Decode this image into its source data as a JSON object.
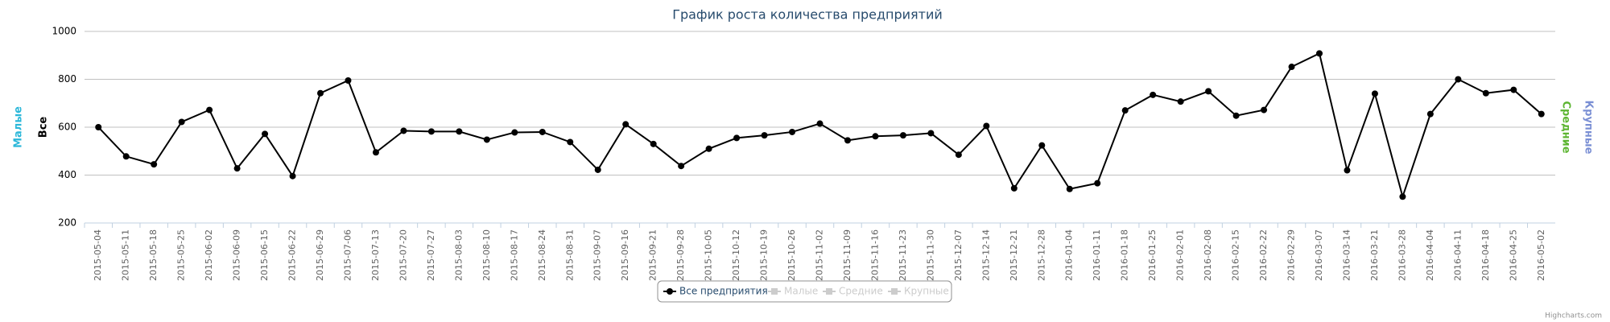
{
  "chart_data": {
    "type": "line",
    "title": "График роста количества предприятий",
    "categories": [
      "2015-05-04",
      "2015-05-11",
      "2015-05-18",
      "2015-05-25",
      "2015-06-02",
      "2015-06-09",
      "2015-06-15",
      "2015-06-22",
      "2015-06-29",
      "2015-07-06",
      "2015-07-13",
      "2015-07-20",
      "2015-07-27",
      "2015-08-03",
      "2015-08-10",
      "2015-08-17",
      "2015-08-24",
      "2015-08-31",
      "2015-09-07",
      "2015-09-16",
      "2015-09-21",
      "2015-09-28",
      "2015-10-05",
      "2015-10-12",
      "2015-10-19",
      "2015-10-26",
      "2015-11-02",
      "2015-11-09",
      "2015-11-16",
      "2015-11-23",
      "2015-11-30",
      "2015-12-07",
      "2015-12-14",
      "2015-12-21",
      "2015-12-28",
      "2016-01-04",
      "2016-01-11",
      "2016-01-18",
      "2016-01-25",
      "2016-02-01",
      "2016-02-08",
      "2016-02-15",
      "2016-02-22",
      "2016-02-29",
      "2016-03-07",
      "2016-03-14",
      "2016-03-21",
      "2016-03-28",
      "2016-04-04",
      "2016-04-11",
      "2016-04-18",
      "2016-04-25",
      "2016-05-02"
    ],
    "series": [
      {
        "name": "Все предприятия",
        "color": "#000000",
        "values": [
          600,
          478,
          445,
          622,
          672,
          428,
          572,
          396,
          742,
          795,
          495,
          585,
          582,
          582,
          548,
          578,
          580,
          538,
          422,
          612,
          530,
          438,
          510,
          555,
          566,
          580,
          615,
          545,
          562,
          566,
          575,
          485,
          605,
          345,
          524,
          342,
          366,
          670,
          735,
          707,
          750,
          648,
          672,
          852,
          908,
          420,
          740,
          310,
          655,
          800,
          742,
          756,
          655
        ]
      }
    ],
    "hidden_series": [
      {
        "name": "Малые",
        "color": "#cccccc"
      },
      {
        "name": "Средние",
        "color": "#cccccc"
      },
      {
        "name": "Крупные",
        "color": "#cccccc"
      }
    ],
    "left_axis_titles": [
      {
        "text": "Малые",
        "color": "#2bb7d9"
      },
      {
        "text": "Все",
        "color": "#000000"
      }
    ],
    "right_axis_titles": [
      {
        "text": "Средние",
        "color": "#5cb531"
      },
      {
        "text": "Крупные",
        "color": "#7a8fd4"
      }
    ],
    "ylim": [
      200,
      1000
    ],
    "yticks": [
      200,
      400,
      600,
      800,
      1000
    ],
    "grid": true,
    "credit": "Highcharts.com"
  }
}
